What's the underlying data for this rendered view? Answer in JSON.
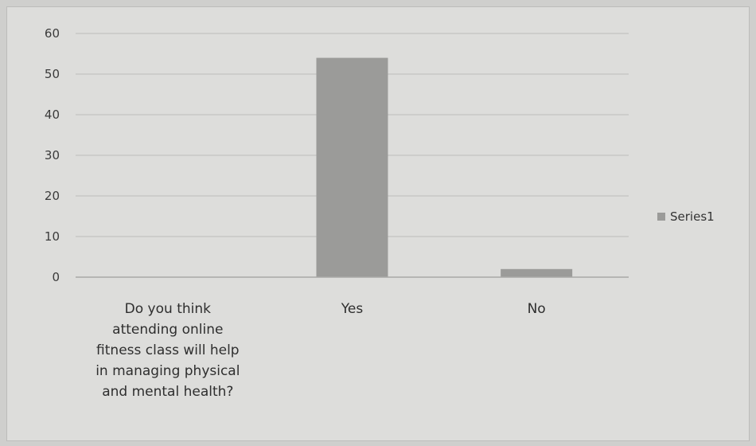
{
  "chart_data": {
    "type": "bar",
    "categories": [
      "Do you think attending online fitness class will help in managing physical and mental health?",
      "Yes",
      "No"
    ],
    "category_lines": [
      [
        "Do you think",
        "attending online",
        "fitness class will help",
        "in managing physical",
        "and mental health?"
      ],
      [
        "Yes"
      ],
      [
        "No"
      ]
    ],
    "series": [
      {
        "name": "Series1",
        "values": [
          0,
          54,
          2
        ],
        "color": "#9b9b99"
      }
    ],
    "yticks": [
      "0",
      "10",
      "20",
      "30",
      "40",
      "50",
      "60"
    ],
    "ylim": [
      0,
      60
    ],
    "grid": true,
    "legend_position": "right",
    "colors": {
      "bar": "#9b9b99",
      "grid": "#c8c8c6",
      "axis": "#a9a9a7",
      "background": "#dddddb"
    }
  }
}
